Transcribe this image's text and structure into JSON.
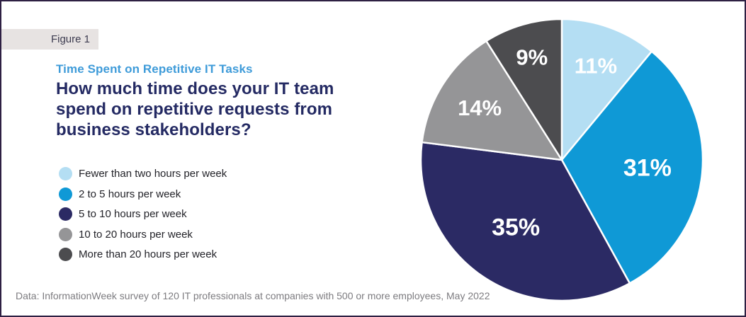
{
  "window": {
    "background": "#ffffff",
    "border_color": "#2e2043"
  },
  "figure_label": "Figure 1",
  "header": {
    "kicker": "Time Spent on Repetitive IT Tasks",
    "title_lines": [
      "How much time does your IT team",
      "spend on repetitive requests from",
      "business stakeholders?"
    ]
  },
  "source_note": "Data: InformationWeek survey of 120 IT professionals at companies with 500 or more employees, May 2022",
  "colors": {
    "kicker_blue": "#3e9bd9",
    "heading_navy": "#242a63",
    "banner_bg": "#e7e3e2",
    "banner_text": "#3d3c50",
    "legend_text": "#232329",
    "source_text": "#7d7c80",
    "slice_stroke": "#ffffff",
    "label_text": "#ffffff"
  },
  "chart_data": {
    "type": "pie",
    "title": "How much time does your IT team spend on repetitive requests from business stakeholders?",
    "legend_position": "left",
    "start_angle_deg": 0,
    "direction": "clockwise",
    "value_unit": "percent",
    "slices": [
      {
        "label": "Fewer than two hours per week",
        "value": 11,
        "display": "11%",
        "color": "#b4def3"
      },
      {
        "label": "2 to 5 hours per week",
        "value": 31,
        "display": "31%",
        "color": "#0f99d6"
      },
      {
        "label": "5 to 10 hours per week",
        "value": 35,
        "display": "35%",
        "color": "#2b2a64"
      },
      {
        "label": "10 to 20 hours per week",
        "value": 14,
        "display": "14%",
        "color": "#959597"
      },
      {
        "label": "More than 20 hours per week",
        "value": 9,
        "display": "9%",
        "color": "#4c4c4f"
      }
    ]
  }
}
